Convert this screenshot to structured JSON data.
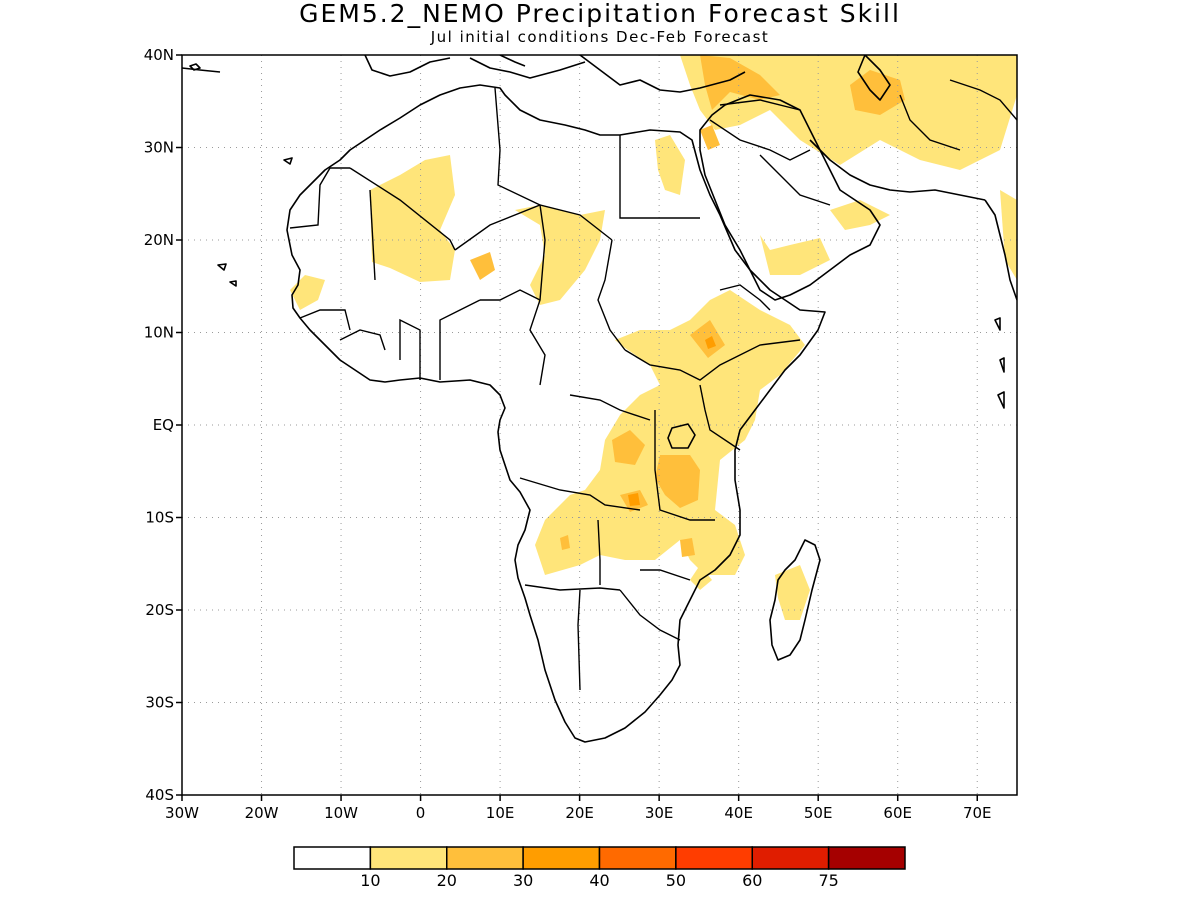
{
  "title": "GEM5.2_NEMO Precipitation Forecast Skill",
  "subtitle": "Jul initial conditions   Dec-Feb Forecast",
  "map": {
    "lon_range": [
      -30,
      75
    ],
    "lat_range": [
      -40,
      40
    ],
    "lat_ticks": [
      {
        "value": 40,
        "label": "40N"
      },
      {
        "value": 30,
        "label": "30N"
      },
      {
        "value": 20,
        "label": "20N"
      },
      {
        "value": 10,
        "label": "10N"
      },
      {
        "value": 0,
        "label": "EQ"
      },
      {
        "value": -10,
        "label": "10S"
      },
      {
        "value": -20,
        "label": "20S"
      },
      {
        "value": -30,
        "label": "30S"
      },
      {
        "value": -40,
        "label": "40S"
      }
    ],
    "lon_ticks": [
      {
        "value": -30,
        "label": "30W"
      },
      {
        "value": -20,
        "label": "20W"
      },
      {
        "value": -10,
        "label": "10W"
      },
      {
        "value": 0,
        "label": "0"
      },
      {
        "value": 10,
        "label": "10E"
      },
      {
        "value": 20,
        "label": "20E"
      },
      {
        "value": 30,
        "label": "30E"
      },
      {
        "value": 40,
        "label": "40E"
      },
      {
        "value": 50,
        "label": "50E"
      },
      {
        "value": 60,
        "label": "60E"
      },
      {
        "value": 70,
        "label": "70E"
      }
    ],
    "grid": true
  },
  "colorbar": {
    "colors": [
      "#ffffff",
      "#ffe57a",
      "#ffbf3b",
      "#ff9d00",
      "#ff6a00",
      "#ff3d00",
      "#e01d00",
      "#a50000"
    ],
    "labels": [
      "10",
      "20",
      "30",
      "40",
      "50",
      "60",
      "75"
    ]
  }
}
